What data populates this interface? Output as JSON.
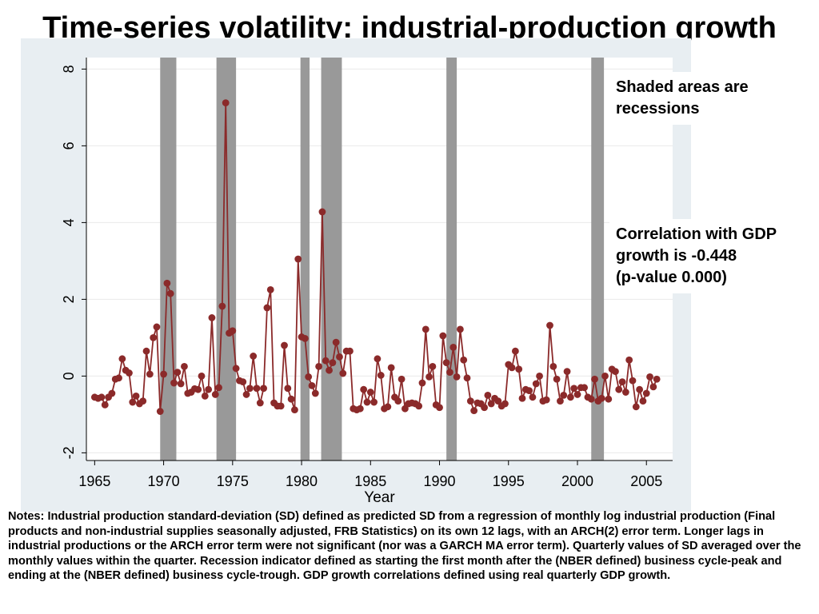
{
  "title": {
    "emphasis": "Time-series",
    "rest": " volatility: industrial-production growth"
  },
  "annotations": {
    "recession_note": "Shaded areas are recessions",
    "correlation_note": [
      "Correlation with GDP",
      "growth is -0.448",
      "(p-value 0.000)"
    ]
  },
  "notes": "Notes: Industrial production standard-deviation (SD) defined as predicted SD from a regression of monthly log industrial production (Final products and non-industrial supplies seasonally adjusted, FRB Statistics) on its own 12 lags, with an ARCH(2) error term. Longer lags in industrial productions or the ARCH error term were not significant (nor was a GARCH MA error term). Quarterly values of SD averaged over the monthly values within the quarter. Recession indicator defined as starting the first month after the (NBER defined) business cycle-peak and ending at the (NBER defined) business cycle-trough. GDP growth correlations defined using real quarterly GDP growth.",
  "colors": {
    "series": "#8b2a2a",
    "recession": "#999999",
    "panel": "#e8eef2",
    "grid": "#eaeaea"
  },
  "chart_data": {
    "type": "line",
    "xlabel": "Year",
    "ylabel": "",
    "xlim": [
      1964.4,
      2006.9
    ],
    "ylim": [
      -2.2,
      8.3
    ],
    "x_ticks": [
      1965,
      1970,
      1975,
      1980,
      1985,
      1990,
      1995,
      2000,
      2005
    ],
    "x_tick_labels": [
      "1965",
      "1970",
      "1975",
      "1980",
      "1985",
      "1990",
      "1995",
      "2000",
      "2005"
    ],
    "y_ticks": [
      -2,
      0,
      2,
      4,
      6,
      8
    ],
    "y_tick_labels": [
      "-2",
      "0",
      "2",
      "4",
      "6",
      "8"
    ],
    "recessions": [
      [
        1969.75,
        1970.92
      ],
      [
        1973.83,
        1975.25
      ],
      [
        1979.92,
        1980.58
      ],
      [
        1981.42,
        1982.92
      ],
      [
        1990.5,
        1991.25
      ],
      [
        2001.0,
        2001.92
      ]
    ],
    "series": [
      {
        "x_start": 1965.0,
        "x_step": 0.25,
        "values": [
          -0.55,
          -0.58,
          -0.55,
          -0.75,
          -0.55,
          -0.45,
          -0.08,
          -0.05,
          0.45,
          0.15,
          0.08,
          -0.68,
          -0.52,
          -0.72,
          -0.65,
          0.65,
          0.05,
          1.0,
          1.28,
          -0.92,
          0.05,
          2.42,
          2.15,
          -0.18,
          0.1,
          -0.2,
          0.25,
          -0.45,
          -0.42,
          -0.33,
          -0.35,
          0.0,
          -0.52,
          -0.35,
          1.52,
          -0.48,
          -0.3,
          1.82,
          7.12,
          1.12,
          1.18,
          0.2,
          -0.12,
          -0.15,
          -0.48,
          -0.32,
          0.52,
          -0.32,
          -0.7,
          -0.32,
          1.78,
          2.25,
          -0.7,
          -0.78,
          -0.78,
          0.8,
          -0.32,
          -0.6,
          -0.88,
          3.05,
          1.02,
          0.98,
          -0.02,
          -0.25,
          -0.45,
          0.25,
          4.28,
          0.4,
          0.15,
          0.35,
          0.88,
          0.5,
          0.07,
          0.65,
          0.65,
          -0.85,
          -0.88,
          -0.85,
          -0.35,
          -0.68,
          -0.42,
          -0.68,
          0.45,
          0.02,
          -0.85,
          -0.8,
          0.22,
          -0.55,
          -0.65,
          -0.08,
          -0.85,
          -0.72,
          -0.7,
          -0.72,
          -0.78,
          -0.18,
          1.22,
          -0.02,
          0.25,
          -0.75,
          -0.82,
          1.05,
          0.35,
          0.1,
          0.75,
          -0.02,
          1.22,
          0.42,
          -0.05,
          -0.65,
          -0.9,
          -0.7,
          -0.72,
          -0.82,
          -0.5,
          -0.72,
          -0.58,
          -0.65,
          -0.78,
          -0.72,
          0.3,
          0.22,
          0.65,
          0.18,
          -0.58,
          -0.35,
          -0.38,
          -0.55,
          -0.2,
          0.0,
          -0.65,
          -0.62,
          1.32,
          0.25,
          -0.08,
          -0.65,
          -0.5,
          0.12,
          -0.55,
          -0.32,
          -0.48,
          -0.3,
          -0.3,
          -0.55,
          -0.6,
          -0.08,
          -0.65,
          -0.58,
          0.0,
          -0.6,
          0.18,
          0.12,
          -0.35,
          -0.15,
          -0.42,
          0.42,
          -0.12,
          -0.8,
          -0.35,
          -0.65,
          -0.45,
          -0.02,
          -0.28,
          -0.08
        ]
      }
    ]
  }
}
